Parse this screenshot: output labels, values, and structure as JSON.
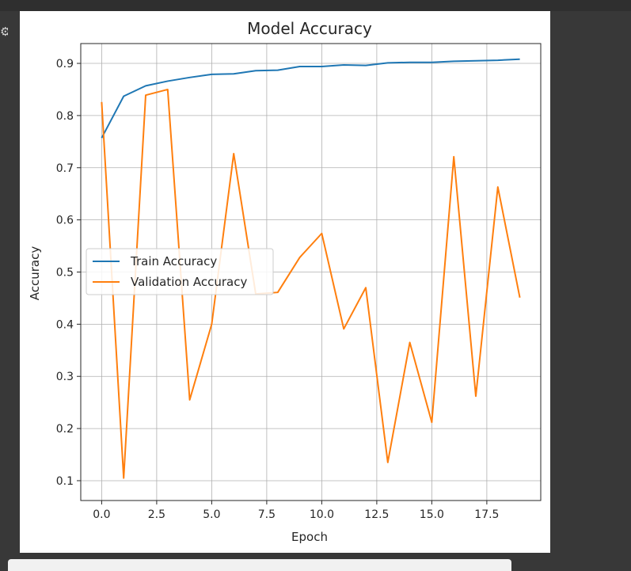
{
  "sidebar": {
    "icon": "gear-icon"
  },
  "chart_data": {
    "type": "line",
    "title": "Model Accuracy",
    "xlabel": "Epoch",
    "ylabel": "Accuracy",
    "x": [
      0,
      1,
      2,
      3,
      4,
      5,
      6,
      7,
      8,
      9,
      10,
      11,
      12,
      13,
      14,
      15,
      16,
      17,
      18,
      19
    ],
    "xlim": [
      -0.95,
      19.95
    ],
    "ylim": [
      0.062,
      0.938
    ],
    "xticks": [
      0.0,
      2.5,
      5.0,
      7.5,
      10.0,
      12.5,
      15.0,
      17.5
    ],
    "xtick_labels": [
      "0.0",
      "2.5",
      "5.0",
      "7.5",
      "10.0",
      "12.5",
      "15.0",
      "17.5"
    ],
    "yticks": [
      0.1,
      0.2,
      0.3,
      0.4,
      0.5,
      0.6,
      0.7,
      0.8,
      0.9
    ],
    "ytick_labels": [
      "0.1",
      "0.2",
      "0.3",
      "0.4",
      "0.5",
      "0.6",
      "0.7",
      "0.8",
      "0.9"
    ],
    "grid": true,
    "legend_position": "center-left",
    "series": [
      {
        "name": "Train Accuracy",
        "color": "#1f77b4",
        "values": [
          0.757,
          0.837,
          0.857,
          0.866,
          0.873,
          0.879,
          0.88,
          0.886,
          0.887,
          0.894,
          0.894,
          0.897,
          0.896,
          0.901,
          0.902,
          0.902,
          0.904,
          0.905,
          0.906,
          0.908
        ]
      },
      {
        "name": "Validation Accuracy",
        "color": "#ff7f0e",
        "values": [
          0.826,
          0.105,
          0.839,
          0.85,
          0.255,
          0.4,
          0.727,
          0.458,
          0.461,
          0.528,
          0.574,
          0.391,
          0.47,
          0.135,
          0.365,
          0.212,
          0.721,
          0.262,
          0.663,
          0.451
        ]
      }
    ]
  }
}
